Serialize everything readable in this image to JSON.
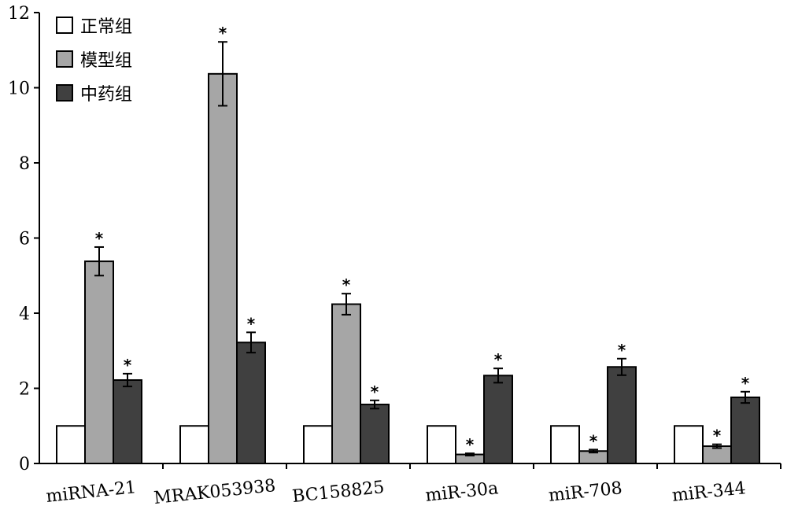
{
  "chart_data": {
    "type": "bar",
    "title": "",
    "xlabel": "",
    "ylabel": "",
    "ylim": [
      0,
      12
    ],
    "yticks": [
      0,
      2,
      4,
      6,
      8,
      10,
      12
    ],
    "grid": false,
    "legend_position": "top-left",
    "categories": [
      "miRNA-21",
      "MRAK053938",
      "BC158825",
      "miR-30a",
      "miR-708",
      "miR-344"
    ],
    "series": [
      {
        "name": "正常组",
        "color": "#ffffff",
        "values": [
          1,
          1,
          1,
          1,
          1,
          1
        ],
        "errors": [
          0,
          0,
          0,
          0,
          0,
          0
        ],
        "significant": [
          false,
          false,
          false,
          false,
          false,
          false
        ]
      },
      {
        "name": "模型组",
        "color": "#a6a6a6",
        "values": [
          5.38,
          10.37,
          4.24,
          0.24,
          0.33,
          0.46
        ],
        "errors": [
          0.38,
          0.85,
          0.28,
          0.03,
          0.04,
          0.05
        ],
        "significant": [
          true,
          true,
          true,
          true,
          true,
          true
        ]
      },
      {
        "name": "中药组",
        "color": "#404040",
        "values": [
          2.22,
          3.22,
          1.57,
          2.34,
          2.57,
          1.76
        ],
        "errors": [
          0.17,
          0.27,
          0.11,
          0.19,
          0.22,
          0.15
        ],
        "significant": [
          true,
          true,
          true,
          true,
          true,
          true
        ]
      }
    ],
    "annotation_symbol": "*"
  }
}
